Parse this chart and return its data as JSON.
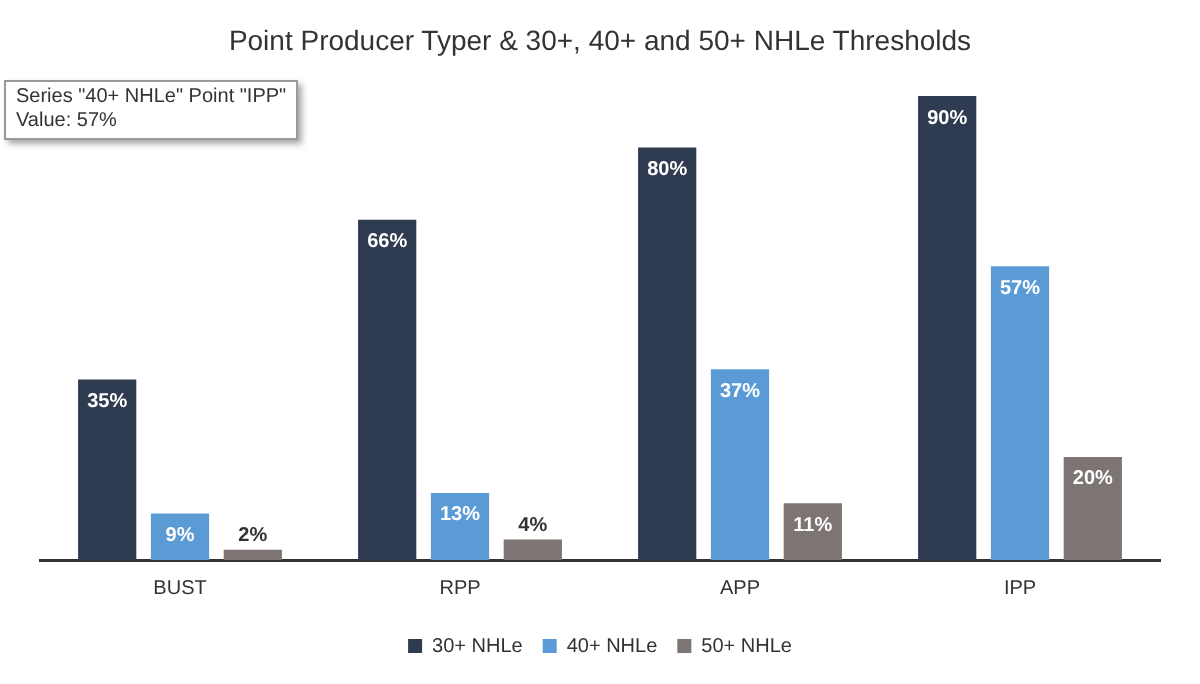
{
  "chart_data": {
    "type": "bar",
    "title": "Point Producer Typer & 30+, 40+ and 50+ NHLe Thresholds",
    "categories": [
      "BUST",
      "RPP",
      "APP",
      "IPP"
    ],
    "series": [
      {
        "name": "30+ NHLe",
        "color": "#2f3b50",
        "values": [
          35,
          66,
          80,
          90
        ],
        "value_labels": [
          "35%",
          "66%",
          "80%",
          "90%"
        ]
      },
      {
        "name": "40+ NHLe",
        "color": "#5b9bd5",
        "values": [
          9,
          13,
          37,
          57
        ],
        "value_labels": [
          "9%",
          "13%",
          "37%",
          "57%"
        ]
      },
      {
        "name": "50+ NHLe",
        "color": "#7d7574",
        "values": [
          2,
          4,
          11,
          20
        ],
        "value_labels": [
          "2%",
          "4%",
          "11%",
          "20%"
        ]
      }
    ],
    "tick_labels": "x",
    "grid": false,
    "legend": "bottom",
    "annotations": [
      "Series \"40+ NHLe\" Point \"IPP\"",
      "Value: 57%"
    ]
  }
}
